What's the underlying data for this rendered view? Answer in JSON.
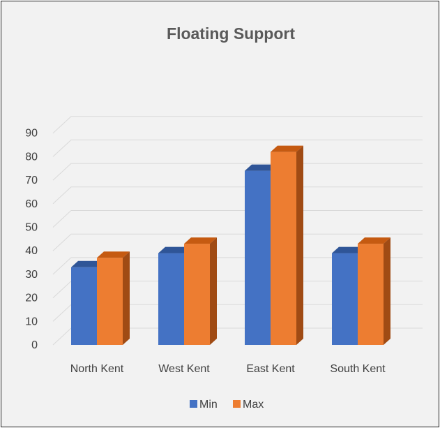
{
  "chart_data": {
    "type": "bar",
    "title": "Floating Support",
    "categories": [
      "North Kent",
      "West Kent",
      "East Kent",
      "South Kent"
    ],
    "series": [
      {
        "name": "Min",
        "values": [
          33,
          39,
          74,
          39
        ]
      },
      {
        "name": "Max",
        "values": [
          37,
          43,
          82,
          43
        ]
      }
    ],
    "ylim": [
      0,
      90
    ],
    "yticks": [
      "0",
      "10",
      "20",
      "30",
      "40",
      "50",
      "60",
      "70",
      "80",
      "90"
    ],
    "grid": true,
    "legend_position": "bottom",
    "bar_style": "3d",
    "colors": {
      "Min": {
        "front": "#4472c4",
        "top": "#2f5597",
        "side": "#2e4f8a"
      },
      "Max": {
        "front": "#ed7d31",
        "top": "#c55a11",
        "side": "#a04b14"
      }
    }
  }
}
